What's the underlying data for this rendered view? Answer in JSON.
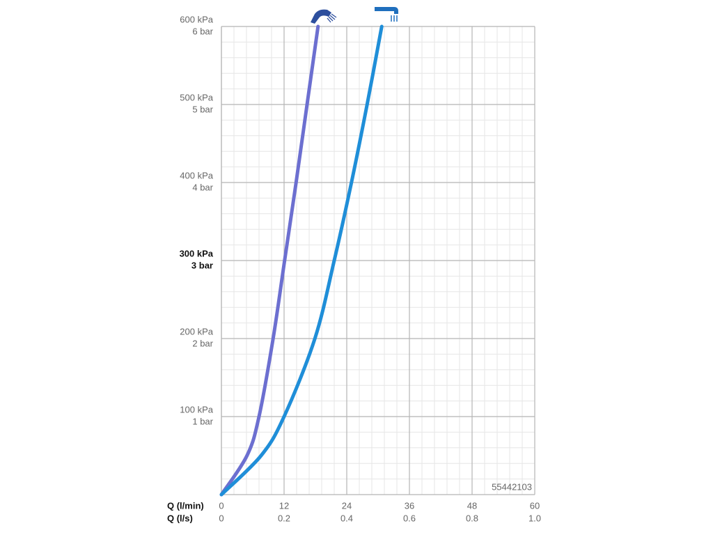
{
  "chart_data": {
    "type": "line",
    "x_label": "Q (l/min)",
    "x2_label": "Q (l/s)",
    "annotation": "55442103",
    "xlim": [
      0,
      60
    ],
    "xticks": [
      0,
      12,
      24,
      36,
      48,
      60
    ],
    "x2lim": [
      0,
      1
    ],
    "x2ticks": [
      0,
      0.2,
      0.4,
      0.6,
      0.8,
      {
        "value": 1,
        "label": "1.0"
      }
    ],
    "ylim": [
      0,
      600
    ],
    "yticks": [
      {
        "value": 100,
        "label": "100 kPa"
      },
      {
        "value": 200,
        "label": "200 kPa"
      },
      {
        "value": 300,
        "label": "300 kPa"
      },
      {
        "value": 400,
        "label": "400 kPa"
      },
      {
        "value": 500,
        "label": "500 kPa"
      },
      {
        "value": 600,
        "label": "600 kPa"
      }
    ],
    "y2lim": [
      0,
      6
    ],
    "y2ticks": [
      {
        "value": 1,
        "label": "1 bar"
      },
      {
        "value": 2,
        "label": "2 bar"
      },
      {
        "value": 3,
        "label": "3 bar"
      },
      {
        "value": 4,
        "label": "4 bar"
      },
      {
        "value": 5,
        "label": "5 bar"
      },
      {
        "value": 6,
        "label": "6 bar"
      }
    ],
    "highlight_ytick": 300,
    "grid": true,
    "series": [
      {
        "color": "#6c6fd0",
        "x": [
          0,
          4.9,
          7.2,
          9.9,
          12.1,
          14.3,
          16.4,
          18.5
        ],
        "values": [
          0,
          50,
          100,
          200,
          300,
          400,
          500,
          600
        ]
      },
      {
        "color": "#1f8ed8",
        "x": [
          0,
          7.6,
          12,
          17.9,
          21.6,
          24.9,
          27.9,
          30.7
        ],
        "values": [
          0,
          50,
          100,
          200,
          300,
          400,
          500,
          600
        ]
      }
    ]
  }
}
